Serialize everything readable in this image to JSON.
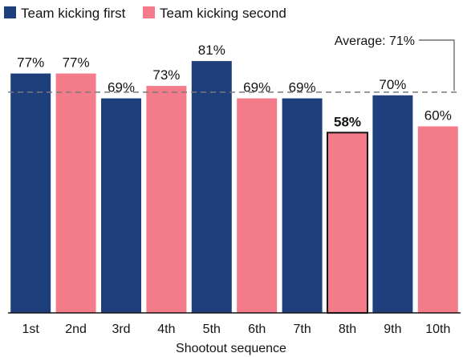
{
  "chart_data": {
    "type": "bar",
    "categories": [
      "1st",
      "2nd",
      "3rd",
      "4th",
      "5th",
      "6th",
      "7th",
      "8th",
      "9th",
      "10th"
    ],
    "values": [
      77,
      77,
      69,
      73,
      81,
      69,
      69,
      58,
      70,
      60
    ],
    "value_labels": [
      "77%",
      "77%",
      "69%",
      "73%",
      "81%",
      "69%",
      "69%",
      "58%",
      "70%",
      "60%"
    ],
    "groups": [
      "first",
      "second",
      "first",
      "second",
      "first",
      "second",
      "first",
      "second",
      "first",
      "second"
    ],
    "highlight_index": 7,
    "legend": [
      {
        "key": "first",
        "label": "Team kicking first",
        "color": "#1f3f7c"
      },
      {
        "key": "second",
        "label": "Team kicking second",
        "color": "#f47b8a"
      }
    ],
    "average": {
      "value": 71,
      "label": "Average: 71%"
    },
    "xlabel": "Shootout sequence",
    "ylabel": "",
    "ylim": [
      0,
      86
    ],
    "grid": false,
    "legend_position": "top-left"
  }
}
